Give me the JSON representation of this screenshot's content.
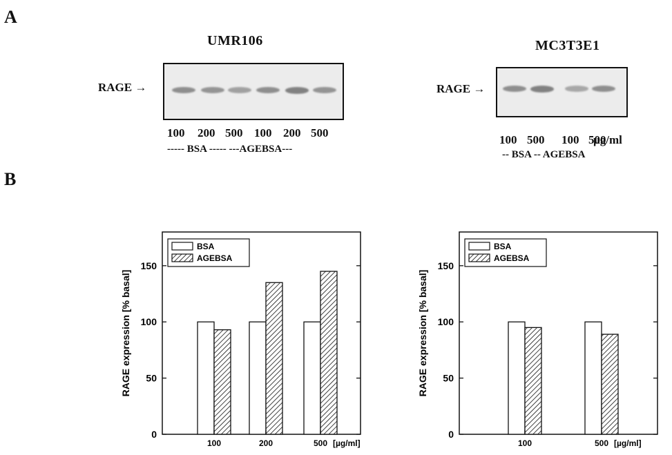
{
  "panel_labels": {
    "a": "A",
    "b": "B"
  },
  "blots": [
    {
      "title": "UMR106",
      "band_label": "RAGE",
      "arrow": "→",
      "lanes": [
        "100",
        "200",
        "500",
        "100",
        "200",
        "500"
      ],
      "group_label": "----- BSA ----- ---AGEBSA---",
      "band_intensity": [
        0.75,
        0.7,
        0.6,
        0.75,
        0.85,
        0.7
      ]
    },
    {
      "title": "MC3T3E1",
      "band_label": "RAGE",
      "arrow": "→",
      "lanes": [
        "100",
        "500",
        "100",
        "500"
      ],
      "unit": "µg/ml",
      "group_label": "-- BSA -- AGEBSA",
      "band_intensity": [
        0.75,
        0.85,
        0.55,
        0.75
      ]
    }
  ],
  "chart_data": [
    {
      "type": "bar",
      "categories": [
        "100",
        "200",
        "500"
      ],
      "x_unit": "[µg/ml]",
      "series": [
        {
          "name": "BSA",
          "values": [
            100,
            100,
            100
          ]
        },
        {
          "name": "AGEBSA",
          "values": [
            93,
            135,
            145
          ]
        }
      ],
      "ylabel": "RAGE expression [% basal]",
      "ylim": [
        0,
        180
      ],
      "yticks": [
        0,
        50,
        100,
        150
      ],
      "legend": "top-left",
      "grid": false
    },
    {
      "type": "bar",
      "categories": [
        "100",
        "500"
      ],
      "x_unit": "[µg/ml]",
      "series": [
        {
          "name": "BSA",
          "values": [
            100,
            100
          ]
        },
        {
          "name": "AGEBSA",
          "values": [
            95,
            89
          ]
        }
      ],
      "ylabel": "RAGE expression [% basal]",
      "ylim": [
        0,
        180
      ],
      "yticks": [
        0,
        50,
        100,
        150
      ],
      "legend": "top-left",
      "grid": false
    }
  ],
  "colors": {
    "bsa_fill": "#ffffff",
    "agebsa_hatch": "#111111",
    "axis": "#111111",
    "band": "#6f6f6f"
  }
}
